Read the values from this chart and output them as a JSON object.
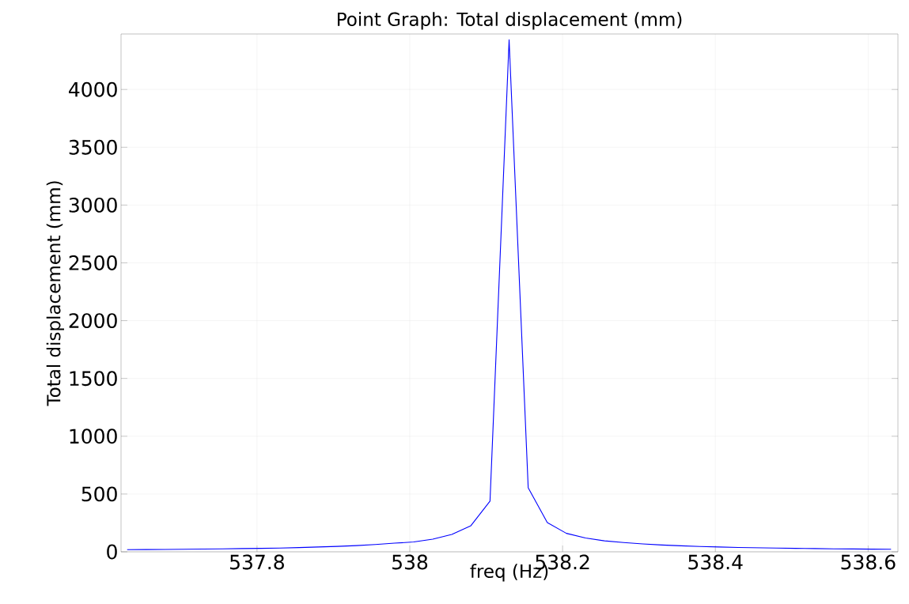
{
  "chart_data": {
    "type": "line",
    "title": "Point Graph: Total displacement (mm)",
    "xlabel": "freq (Hz)",
    "ylabel": "Total displacement (mm)",
    "x": [
      537.63,
      537.655,
      537.68,
      537.705,
      537.73,
      537.755,
      537.78,
      537.805,
      537.83,
      537.855,
      537.88,
      537.905,
      537.93,
      537.955,
      537.98,
      538.005,
      538.03,
      538.055,
      538.08,
      538.105,
      538.13,
      538.155,
      538.18,
      538.205,
      538.23,
      538.255,
      538.28,
      538.305,
      538.33,
      538.355,
      538.38,
      538.405,
      538.43,
      538.455,
      538.48,
      538.505,
      538.53,
      538.555,
      538.58,
      538.605,
      538.63
    ],
    "series": [
      {
        "color": "#0000ff",
        "values": [
          19,
          20,
          21,
          22,
          24,
          26,
          28,
          30,
          33,
          37,
          42,
          47,
          54,
          63,
          75,
          85,
          109,
          150,
          226,
          438,
          4430,
          554,
          253,
          160,
          120,
          95,
          80,
          68,
          59,
          52,
          46,
          42,
          38,
          35,
          32,
          30,
          28,
          26,
          25,
          23,
          22
        ]
      }
    ],
    "xlim": [
      537.622,
      538.639
    ],
    "ylim": [
      0,
      4480
    ],
    "xticks": [
      537.8,
      538,
      538.2,
      538.4,
      538.6
    ],
    "yticks": [
      0,
      500,
      1000,
      1500,
      2000,
      2500,
      3000,
      3500,
      4000
    ],
    "grid": true,
    "line_style": "solid",
    "marker": "none"
  }
}
